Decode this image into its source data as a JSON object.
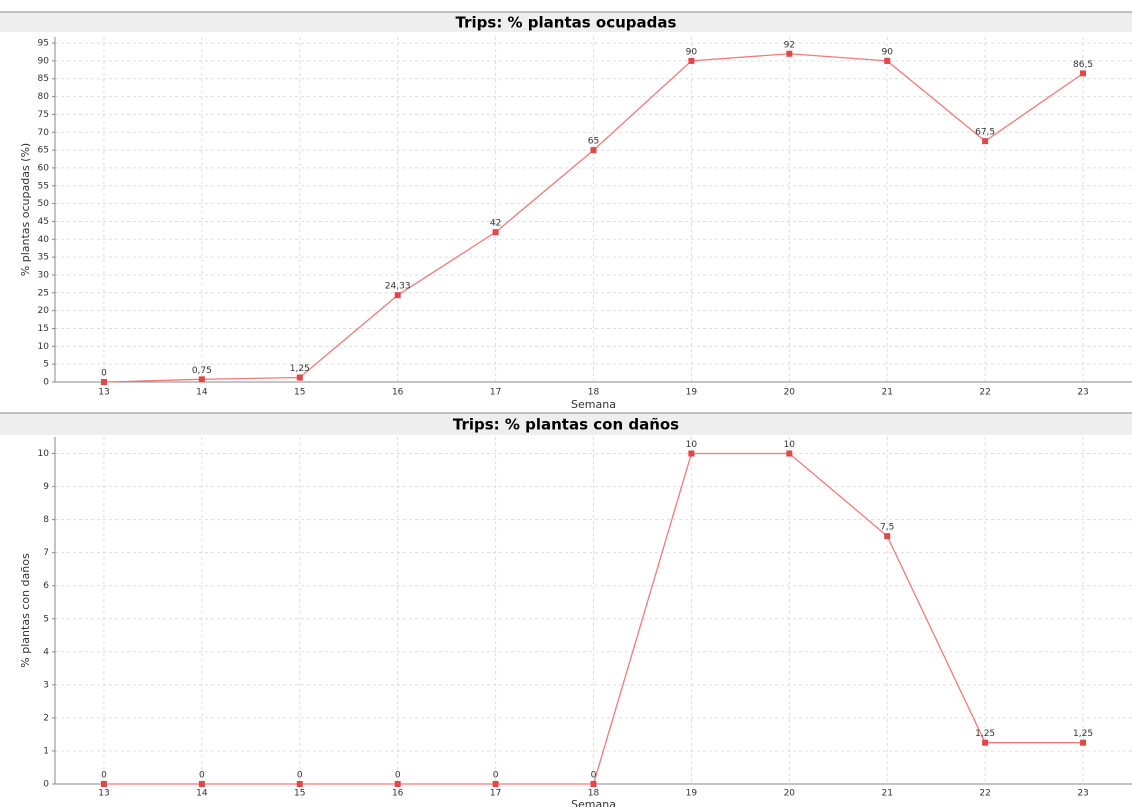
{
  "chart_data": [
    {
      "type": "line",
      "title": "Trips: % plantas ocupadas",
      "x_label": "Semana",
      "y_label": "% plantas ocupadas (%)",
      "categories": [
        "13",
        "14",
        "15",
        "16",
        "17",
        "18",
        "19",
        "20",
        "21",
        "22",
        "23"
      ],
      "values": [
        0,
        0.75,
        1.25,
        24.33,
        42,
        65,
        90,
        92,
        90,
        67.5,
        86.5
      ],
      "value_labels": [
        "0",
        "0,75",
        "1,25",
        "24,33",
        "42",
        "65",
        "90",
        "92",
        "90",
        "67,5",
        "86,5"
      ],
      "color": "#f07c7c",
      "marker_color": "#e04848",
      "ylim": [
        0,
        96.7
      ],
      "yticks": [
        0,
        5,
        10,
        15,
        20,
        25,
        30,
        35,
        40,
        45,
        50,
        55,
        60,
        65,
        70,
        75,
        80,
        85,
        90,
        95
      ],
      "grid": true
    },
    {
      "type": "line",
      "title": "Trips: % plantas con daños",
      "x_label": "Semana",
      "y_label": "% plantas con daños",
      "categories": [
        "13",
        "14",
        "15",
        "16",
        "17",
        "18",
        "19",
        "20",
        "21",
        "22",
        "23"
      ],
      "values": [
        0,
        0,
        0,
        0,
        0,
        0,
        10,
        10,
        7.5,
        1.25,
        1.25
      ],
      "value_labels": [
        "0",
        "0",
        "0",
        "0",
        "0",
        "0",
        "10",
        "10",
        "7,5",
        "1,25",
        "1,25"
      ],
      "color": "#f07c7c",
      "marker_color": "#e04848",
      "ylim": [
        0,
        10.5
      ],
      "yticks": [
        0,
        1,
        2,
        3,
        4,
        5,
        6,
        7,
        8,
        9,
        10
      ],
      "grid": true
    }
  ]
}
